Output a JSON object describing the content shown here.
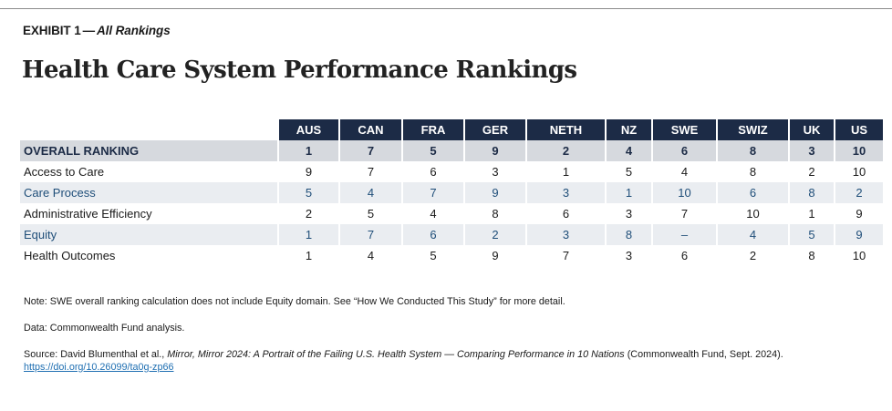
{
  "exhibit": {
    "label": "EXHIBIT 1",
    "dash": "—",
    "subtitle": "All Rankings"
  },
  "title": "Health Care System Performance Rankings",
  "colors": {
    "header_bg": "#1c2b46",
    "overall_bg": "#d6d9de",
    "shade_bg": "#eaedf1",
    "link": "#1f6fb2"
  },
  "chart_data": {
    "type": "table",
    "columns": [
      "AUS",
      "CAN",
      "FRA",
      "GER",
      "NETH",
      "NZ",
      "SWE",
      "SWIZ",
      "UK",
      "US"
    ],
    "rows": [
      {
        "label": "OVERALL RANKING",
        "values": [
          "1",
          "7",
          "5",
          "9",
          "2",
          "4",
          "6",
          "8",
          "3",
          "10"
        ]
      },
      {
        "label": "Access to Care",
        "values": [
          "9",
          "7",
          "6",
          "3",
          "1",
          "5",
          "4",
          "8",
          "2",
          "10"
        ]
      },
      {
        "label": "Care Process",
        "values": [
          "5",
          "4",
          "7",
          "9",
          "3",
          "1",
          "10",
          "6",
          "8",
          "2"
        ]
      },
      {
        "label": "Administrative Efficiency",
        "values": [
          "2",
          "5",
          "4",
          "8",
          "6",
          "3",
          "7",
          "10",
          "1",
          "9"
        ]
      },
      {
        "label": "Equity",
        "values": [
          "1",
          "7",
          "6",
          "2",
          "3",
          "8",
          "–",
          "4",
          "5",
          "9"
        ]
      },
      {
        "label": "Health Outcomes",
        "values": [
          "1",
          "4",
          "5",
          "9",
          "7",
          "3",
          "6",
          "2",
          "8",
          "10"
        ]
      }
    ]
  },
  "notes": {
    "note": "Note: SWE overall ranking calculation does not include Equity domain. See “How We Conducted This Study” for more detail.",
    "data": "Data: Commonwealth Fund analysis.",
    "source_prefix": "Source: David Blumenthal et al., ",
    "source_title": "Mirror, Mirror 2024: A Portrait of the Failing U.S. Health System — Comparing Performance in 10 Nations",
    "source_suffix": " (Commonwealth Fund, Sept. 2024).",
    "doi": "https://doi.org/10.26099/ta0g-zp66"
  }
}
